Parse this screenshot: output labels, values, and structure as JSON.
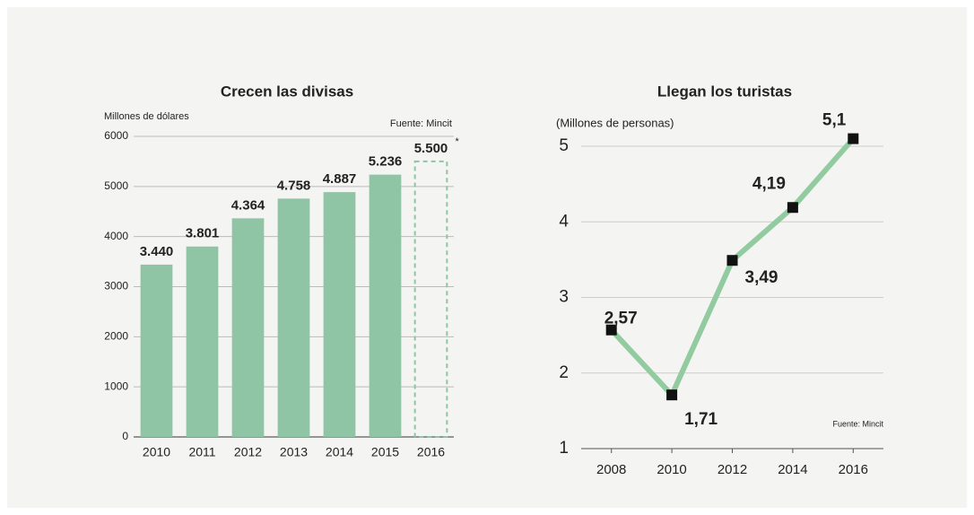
{
  "chart_data": [
    {
      "type": "bar",
      "title": "Crecen las divisas",
      "y_label": "Millones de dólares",
      "source": "Fuente: Mincit",
      "categories": [
        "2010",
        "2011",
        "2012",
        "2013",
        "2014",
        "2015",
        "2016"
      ],
      "values": [
        3440,
        3801,
        4364,
        4758,
        4887,
        5236,
        5500
      ],
      "value_labels": [
        "3.440",
        "3.801",
        "4.364",
        "4.758",
        "4.887",
        "5.236",
        "5.500"
      ],
      "projected": [
        false,
        false,
        false,
        false,
        false,
        false,
        true
      ],
      "annotation": "*",
      "color": "#8fc4a5",
      "ylim": [
        0,
        6000
      ],
      "yticks": [
        0,
        1000,
        2000,
        3000,
        4000,
        5000,
        6000
      ],
      "grid": true
    },
    {
      "type": "line",
      "title": "Llegan los turistas",
      "y_label": "(Millones de personas)",
      "source": "Fuente: Mincit",
      "x": [
        2008,
        2010,
        2012,
        2014,
        2016
      ],
      "values": [
        2.57,
        1.71,
        3.49,
        4.19,
        5.1
      ],
      "value_labels": [
        "2,57",
        "1,71",
        "3,49",
        "4,19",
        "5,1"
      ],
      "color": "#92cba0",
      "marker_color": "#111111",
      "xlim": [
        2007,
        2017
      ],
      "xticks": [
        2008,
        2010,
        2012,
        2014,
        2016
      ],
      "ylim": [
        1,
        5
      ],
      "yticks": [
        1,
        2,
        3,
        4,
        5
      ],
      "grid": true
    }
  ]
}
